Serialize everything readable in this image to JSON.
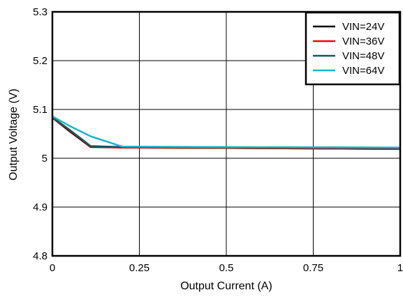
{
  "chart_data": {
    "type": "line",
    "title": "",
    "xlabel": "Output Current (A)",
    "ylabel": "Output Voltage (V)",
    "xlim": [
      0,
      1
    ],
    "ylim": [
      4.8,
      5.3
    ],
    "x_ticks": [
      0,
      0.25,
      0.5,
      0.75,
      1
    ],
    "x_tick_labels": [
      "0",
      "0.25",
      "0.5",
      "0.75",
      "1"
    ],
    "y_ticks": [
      4.8,
      4.9,
      5,
      5.1,
      5.2,
      5.3
    ],
    "y_tick_labels": [
      "4.8",
      "4.9",
      "5",
      "5.1",
      "5.2",
      "5.3"
    ],
    "grid": true,
    "legend_position": "top-right",
    "series": [
      {
        "name": "VIN=24V",
        "color": "#000000",
        "x": [
          0,
          0.05,
          0.11,
          0.2,
          0.5,
          1
        ],
        "y": [
          5.083,
          5.055,
          5.023,
          5.022,
          5.021,
          5.019
        ]
      },
      {
        "name": "VIN=36V",
        "color": "#ff0000",
        "x": [
          0,
          0.05,
          0.11,
          0.2,
          0.5,
          1
        ],
        "y": [
          5.083,
          5.057,
          5.024,
          5.022,
          5.021,
          5.019
        ]
      },
      {
        "name": "VIN=48V",
        "color": "#0f5a5a",
        "x": [
          0,
          0.05,
          0.11,
          0.2,
          0.5,
          1
        ],
        "y": [
          5.084,
          5.058,
          5.025,
          5.023,
          5.022,
          5.021
        ]
      },
      {
        "name": "VIN=64V",
        "color": "#19b5c8",
        "x": [
          0,
          0.05,
          0.11,
          0.2,
          0.5,
          1
        ],
        "y": [
          5.086,
          5.066,
          5.045,
          5.024,
          5.023,
          5.022
        ]
      }
    ]
  }
}
